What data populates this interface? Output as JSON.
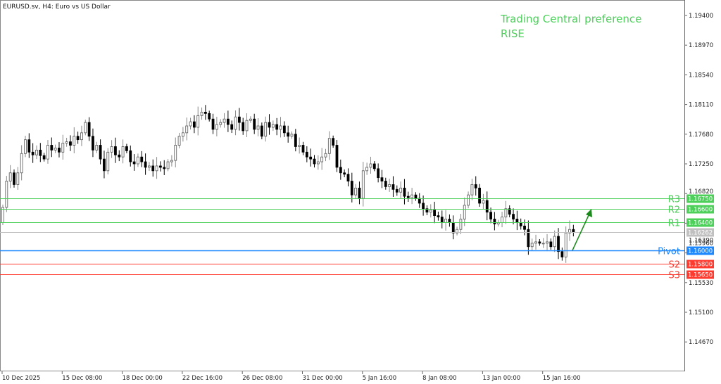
{
  "header": {
    "title": "EURUSD.sv, H4:  Euro vs US Dollar"
  },
  "annotation": {
    "line1": "Trading Central preference",
    "line2": "RISE",
    "color": "#4cd05a",
    "arrow_color": "#1a8a1a",
    "arrow_direction": "up"
  },
  "chart_data": {
    "type": "candlestick",
    "symbol": "EURUSD.sv",
    "timeframe": "H4",
    "ylim": [
      1.1445,
      1.1965
    ],
    "y_ticks": [
      "1.19400",
      "1.18970",
      "1.18540",
      "1.18110",
      "1.17680",
      "1.17250",
      "1.16820",
      "1.16390",
      "1.15960",
      "1.15530",
      "1.15100",
      "1.14670"
    ],
    "x_ticks": [
      "10 Dec 2025",
      "15 Dec 08:00",
      "18 Dec 00:00",
      "22 Dec 16:00",
      "26 Dec 08:00",
      "31 Dec 00:00",
      "5 Jan 16:00",
      "8 Jan 08:00",
      "13 Jan 00:00",
      "15 Jan 16:00"
    ],
    "candles_per_x_tick": 16,
    "first_open": 1.164,
    "close": [
      1.1662,
      1.17,
      1.1712,
      1.1695,
      1.1712,
      1.174,
      1.176,
      1.1742,
      1.1738,
      1.1745,
      1.1737,
      1.1732,
      1.1752,
      1.1745,
      1.1748,
      1.1742,
      1.1755,
      1.1757,
      1.1752,
      1.1765,
      1.176,
      1.177,
      1.1785,
      1.1765,
      1.1745,
      1.1752,
      1.1732,
      1.1715,
      1.1742,
      1.175,
      1.1738,
      1.1735,
      1.175,
      1.1744,
      1.1728,
      1.1725,
      1.1735,
      1.1728,
      1.172,
      1.1722,
      1.1715,
      1.1722,
      1.172,
      1.1718,
      1.1728,
      1.173,
      1.1752,
      1.1765,
      1.177,
      1.178,
      1.1786,
      1.1778,
      1.1795,
      1.18,
      1.1798,
      1.179,
      1.1775,
      1.1782,
      1.1785,
      1.179,
      1.1782,
      1.1775,
      1.1793,
      1.1785,
      1.1773,
      1.1788,
      1.179,
      1.1775,
      1.178,
      1.1765,
      1.1785,
      1.1778,
      1.1782,
      1.1775,
      1.178,
      1.177,
      1.1765,
      1.1768,
      1.175,
      1.1752,
      1.1742,
      1.1735,
      1.1732,
      1.1725,
      1.1728,
      1.1735,
      1.174,
      1.1762,
      1.1752,
      1.172,
      1.1712,
      1.171,
      1.17,
      1.168,
      1.169,
      1.1675,
      1.1715,
      1.172,
      1.1725,
      1.1718,
      1.1705,
      1.17,
      1.1692,
      1.1695,
      1.1688,
      1.1684,
      1.169,
      1.1678,
      1.1676,
      1.168,
      1.1675,
      1.1668,
      1.166,
      1.1655,
      1.1658,
      1.165,
      1.1648,
      1.164,
      1.1645,
      1.164,
      1.1625,
      1.163,
      1.1645,
      1.1665,
      1.168,
      1.1695,
      1.169,
      1.1668,
      1.1672,
      1.1655,
      1.1645,
      1.1638,
      1.164,
      1.1648,
      1.166,
      1.1652,
      1.1645,
      1.164,
      1.1635,
      1.163,
      1.1605,
      1.161,
      1.1612,
      1.161,
      1.161,
      1.1612,
      1.1605,
      1.162,
      1.1598,
      1.159,
      1.1625,
      1.163,
      1.1626
    ],
    "levels": [
      {
        "name": "R3",
        "value": "1.16750",
        "color": "#4cd05a"
      },
      {
        "name": "R2",
        "value": "1.16600",
        "color": "#4cd05a"
      },
      {
        "name": "R1",
        "value": "1.16400",
        "color": "#4cd05a"
      },
      {
        "name": "",
        "value": "1.16262",
        "color": "#c0c0c0"
      },
      {
        "name": "Pivot",
        "value": "1.16000",
        "color": "#1e88ff"
      },
      {
        "name": "S2",
        "value": "1.15800",
        "color": "#ff3b30"
      },
      {
        "name": "S3",
        "value": "1.15650",
        "color": "#ff3b30"
      }
    ],
    "grid": false
  }
}
